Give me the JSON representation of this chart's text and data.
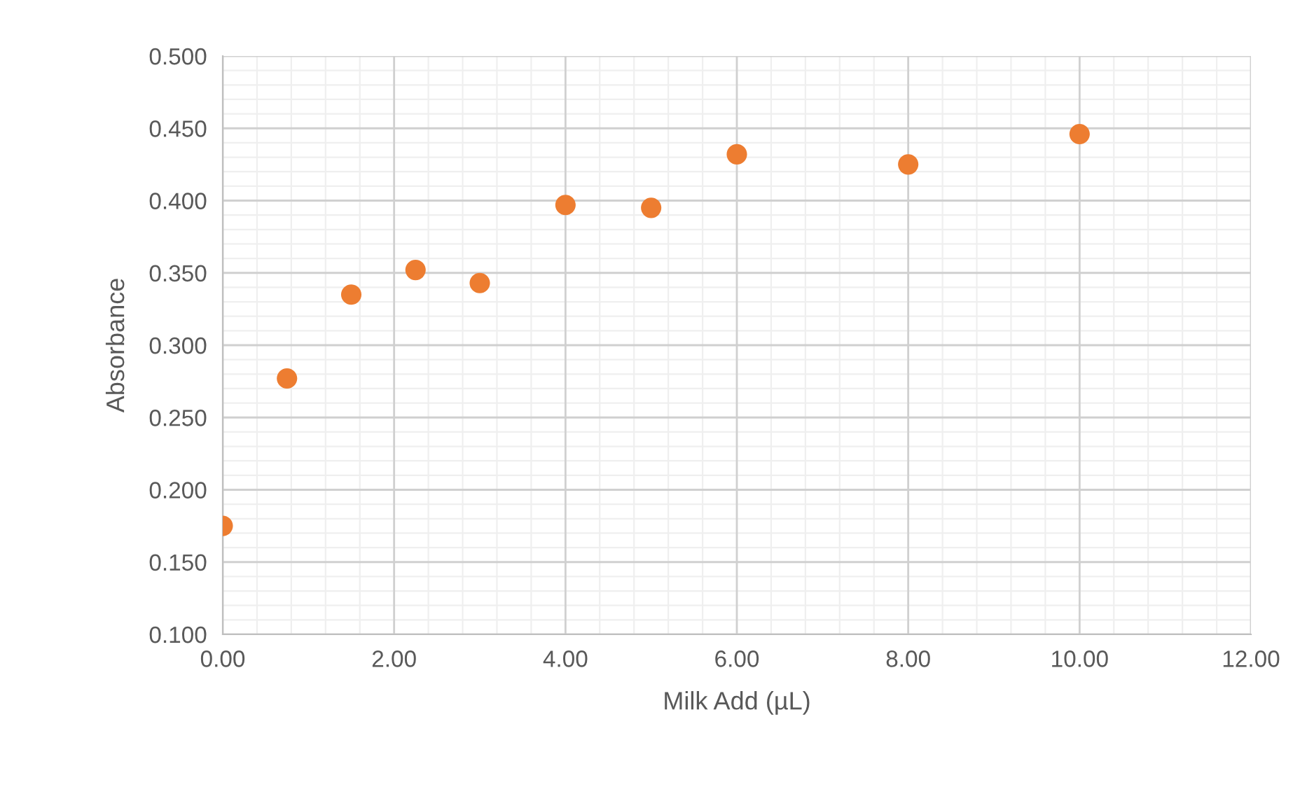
{
  "chart_data": {
    "type": "scatter",
    "xlabel": "Milk Add (µL)",
    "ylabel": "Absorbance",
    "x": [
      0,
      0.75,
      1.5,
      2.25,
      3,
      4,
      5,
      6,
      8,
      10
    ],
    "series": [
      {
        "color": "#ed7d31",
        "values": [
          0.175,
          0.277,
          0.335,
          0.352,
          0.343,
          0.397,
          0.395,
          0.432,
          0.425,
          0.446
        ]
      }
    ],
    "xlim": [
      0,
      12
    ],
    "ylim": [
      0.1,
      0.5
    ],
    "xticks": [
      {
        "value": 0,
        "label": "0.00"
      },
      {
        "value": 2,
        "label": "2.00"
      },
      {
        "value": 4,
        "label": "4.00"
      },
      {
        "value": 6,
        "label": "6.00"
      },
      {
        "value": 8,
        "label": "8.00"
      },
      {
        "value": 10,
        "label": "10.00"
      },
      {
        "value": 12,
        "label": "12.00"
      }
    ],
    "yticks": [
      {
        "value": 0.1,
        "label": "0.100"
      },
      {
        "value": 0.15,
        "label": "0.150"
      },
      {
        "value": 0.2,
        "label": "0.200"
      },
      {
        "value": 0.25,
        "label": "0.250"
      },
      {
        "value": 0.3,
        "label": "0.300"
      },
      {
        "value": 0.35,
        "label": "0.350"
      },
      {
        "value": 0.4,
        "label": "0.400"
      },
      {
        "value": 0.45,
        "label": "0.450"
      },
      {
        "value": 0.5,
        "label": "0.500"
      }
    ],
    "grid": true,
    "marker": "circle"
  }
}
